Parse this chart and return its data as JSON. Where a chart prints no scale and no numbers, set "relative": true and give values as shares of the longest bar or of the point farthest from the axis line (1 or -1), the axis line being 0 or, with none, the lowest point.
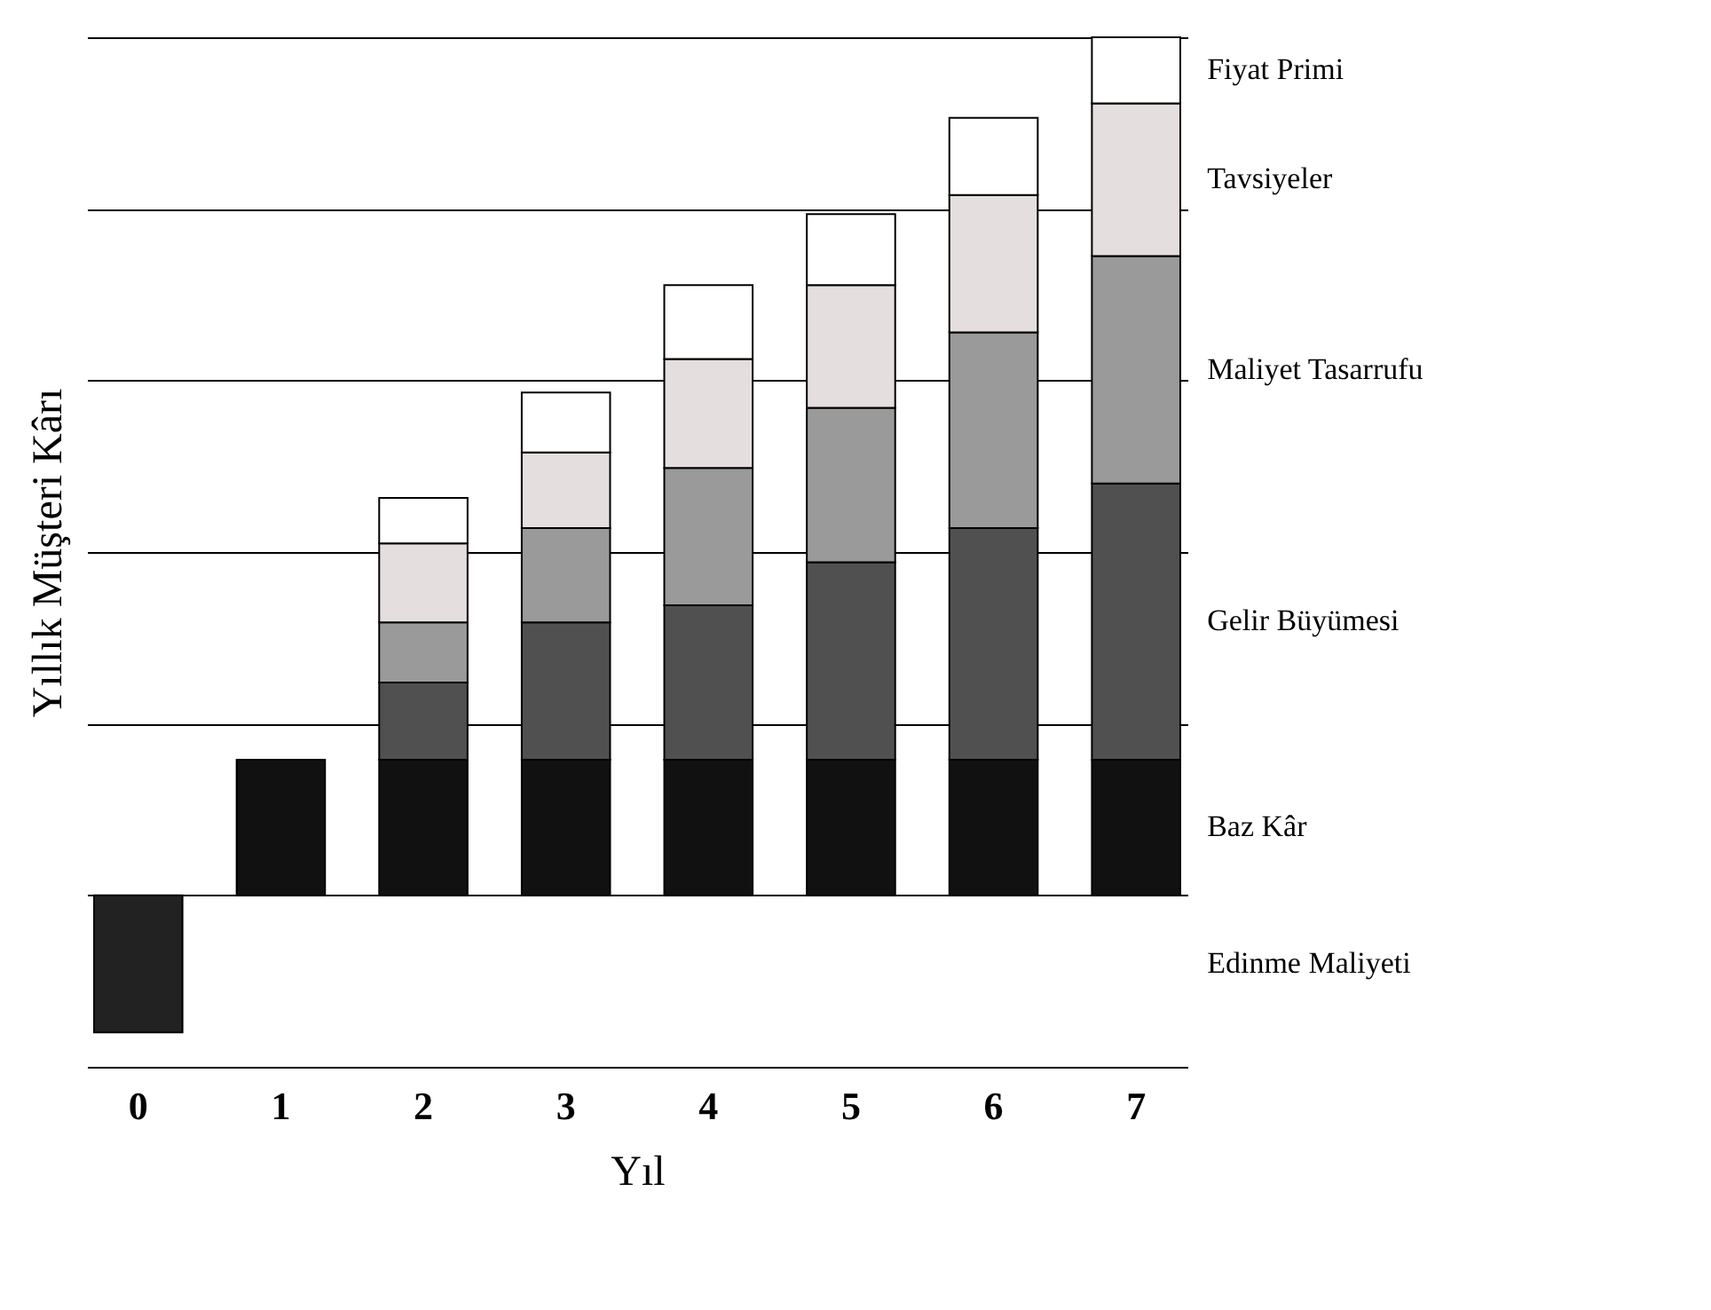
{
  "chart_data": {
    "type": "bar",
    "stacked": true,
    "relative": true,
    "grid": "y",
    "xlabel": "Yıl",
    "ylabel": "Yıllık Müşteri Kârı",
    "categories": [
      "0",
      "1",
      "2",
      "3",
      "4",
      "5",
      "6",
      "7"
    ],
    "series": [
      {
        "name": "Edinme Maliyeti",
        "color": "#222222",
        "values": [
          -0.16,
          null,
          null,
          null,
          null,
          null,
          null,
          null
        ]
      },
      {
        "name": "Baz Kâr",
        "color": "#111111",
        "values": [
          null,
          0.158,
          0.158,
          0.158,
          0.158,
          0.158,
          0.158,
          0.158
        ]
      },
      {
        "name": "Gelir Büyümesi",
        "color": "#505050",
        "values": [
          null,
          null,
          0.09,
          0.16,
          0.18,
          0.23,
          0.27,
          0.322
        ]
      },
      {
        "name": "Maliyet Tasarrufu",
        "color": "#9a9a9a",
        "values": [
          null,
          null,
          0.07,
          0.11,
          0.16,
          0.18,
          0.228,
          0.265
        ]
      },
      {
        "name": "Tavsiyeler",
        "color": "#e4dede",
        "values": [
          null,
          null,
          0.092,
          0.088,
          0.127,
          0.143,
          0.16,
          0.178
        ]
      },
      {
        "name": "Fiyat Primi",
        "color": "#ffffff",
        "values": [
          null,
          null,
          0.053,
          0.07,
          0.086,
          0.083,
          0.09,
          0.077
        ]
      }
    ]
  }
}
